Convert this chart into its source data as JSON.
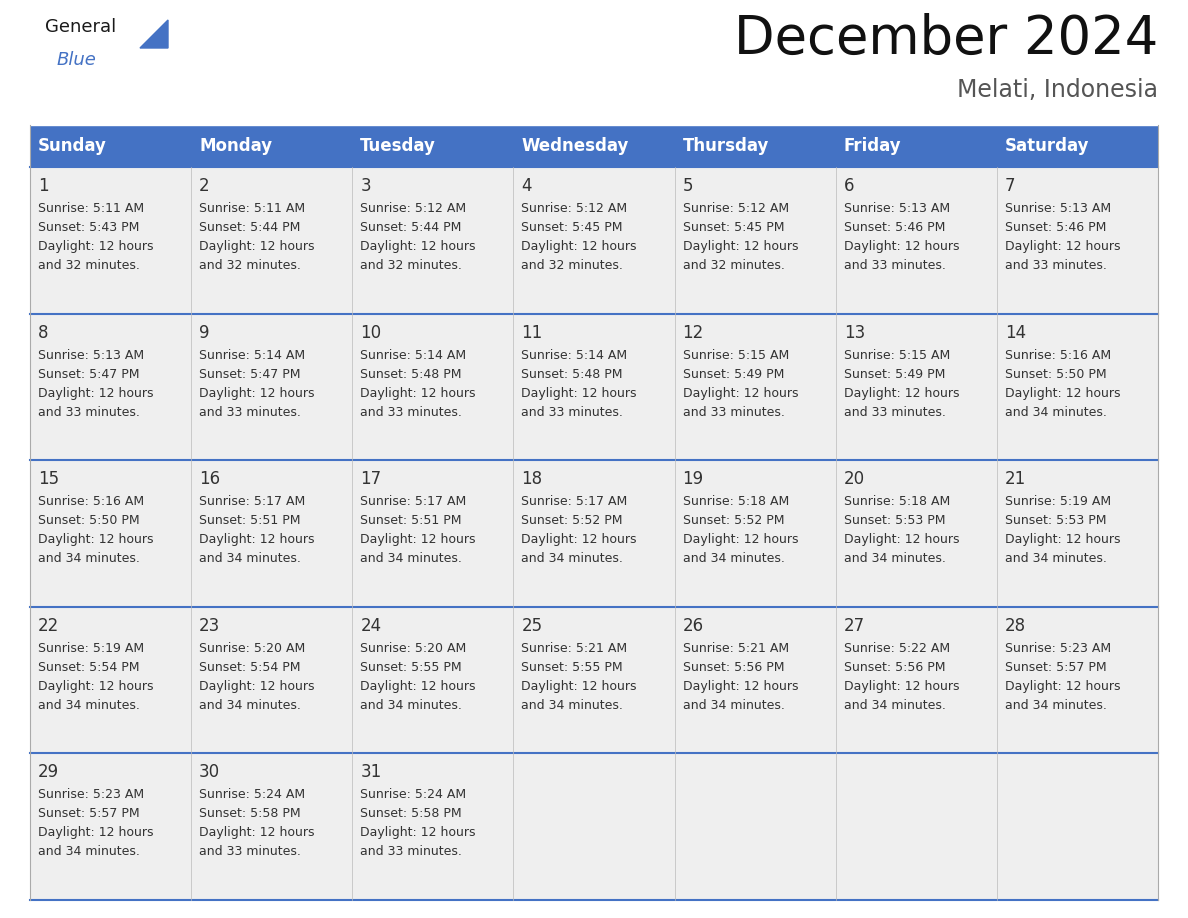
{
  "title": "December 2024",
  "subtitle": "Melati, Indonesia",
  "header_bg_color": "#4472C4",
  "header_text_color": "#FFFFFF",
  "cell_bg_color": "#EFEFEF",
  "cell_text_color": "#333333",
  "day_headers": [
    "Sunday",
    "Monday",
    "Tuesday",
    "Wednesday",
    "Thursday",
    "Friday",
    "Saturday"
  ],
  "days": [
    {
      "day": 1,
      "col": 0,
      "row": 0,
      "sunrise": "5:11 AM",
      "sunset": "5:43 PM",
      "daylight_hours": 12,
      "daylight_minutes": 32
    },
    {
      "day": 2,
      "col": 1,
      "row": 0,
      "sunrise": "5:11 AM",
      "sunset": "5:44 PM",
      "daylight_hours": 12,
      "daylight_minutes": 32
    },
    {
      "day": 3,
      "col": 2,
      "row": 0,
      "sunrise": "5:12 AM",
      "sunset": "5:44 PM",
      "daylight_hours": 12,
      "daylight_minutes": 32
    },
    {
      "day": 4,
      "col": 3,
      "row": 0,
      "sunrise": "5:12 AM",
      "sunset": "5:45 PM",
      "daylight_hours": 12,
      "daylight_minutes": 32
    },
    {
      "day": 5,
      "col": 4,
      "row": 0,
      "sunrise": "5:12 AM",
      "sunset": "5:45 PM",
      "daylight_hours": 12,
      "daylight_minutes": 32
    },
    {
      "day": 6,
      "col": 5,
      "row": 0,
      "sunrise": "5:13 AM",
      "sunset": "5:46 PM",
      "daylight_hours": 12,
      "daylight_minutes": 33
    },
    {
      "day": 7,
      "col": 6,
      "row": 0,
      "sunrise": "5:13 AM",
      "sunset": "5:46 PM",
      "daylight_hours": 12,
      "daylight_minutes": 33
    },
    {
      "day": 8,
      "col": 0,
      "row": 1,
      "sunrise": "5:13 AM",
      "sunset": "5:47 PM",
      "daylight_hours": 12,
      "daylight_minutes": 33
    },
    {
      "day": 9,
      "col": 1,
      "row": 1,
      "sunrise": "5:14 AM",
      "sunset": "5:47 PM",
      "daylight_hours": 12,
      "daylight_minutes": 33
    },
    {
      "day": 10,
      "col": 2,
      "row": 1,
      "sunrise": "5:14 AM",
      "sunset": "5:48 PM",
      "daylight_hours": 12,
      "daylight_minutes": 33
    },
    {
      "day": 11,
      "col": 3,
      "row": 1,
      "sunrise": "5:14 AM",
      "sunset": "5:48 PM",
      "daylight_hours": 12,
      "daylight_minutes": 33
    },
    {
      "day": 12,
      "col": 4,
      "row": 1,
      "sunrise": "5:15 AM",
      "sunset": "5:49 PM",
      "daylight_hours": 12,
      "daylight_minutes": 33
    },
    {
      "day": 13,
      "col": 5,
      "row": 1,
      "sunrise": "5:15 AM",
      "sunset": "5:49 PM",
      "daylight_hours": 12,
      "daylight_minutes": 33
    },
    {
      "day": 14,
      "col": 6,
      "row": 1,
      "sunrise": "5:16 AM",
      "sunset": "5:50 PM",
      "daylight_hours": 12,
      "daylight_minutes": 34
    },
    {
      "day": 15,
      "col": 0,
      "row": 2,
      "sunrise": "5:16 AM",
      "sunset": "5:50 PM",
      "daylight_hours": 12,
      "daylight_minutes": 34
    },
    {
      "day": 16,
      "col": 1,
      "row": 2,
      "sunrise": "5:17 AM",
      "sunset": "5:51 PM",
      "daylight_hours": 12,
      "daylight_minutes": 34
    },
    {
      "day": 17,
      "col": 2,
      "row": 2,
      "sunrise": "5:17 AM",
      "sunset": "5:51 PM",
      "daylight_hours": 12,
      "daylight_minutes": 34
    },
    {
      "day": 18,
      "col": 3,
      "row": 2,
      "sunrise": "5:17 AM",
      "sunset": "5:52 PM",
      "daylight_hours": 12,
      "daylight_minutes": 34
    },
    {
      "day": 19,
      "col": 4,
      "row": 2,
      "sunrise": "5:18 AM",
      "sunset": "5:52 PM",
      "daylight_hours": 12,
      "daylight_minutes": 34
    },
    {
      "day": 20,
      "col": 5,
      "row": 2,
      "sunrise": "5:18 AM",
      "sunset": "5:53 PM",
      "daylight_hours": 12,
      "daylight_minutes": 34
    },
    {
      "day": 21,
      "col": 6,
      "row": 2,
      "sunrise": "5:19 AM",
      "sunset": "5:53 PM",
      "daylight_hours": 12,
      "daylight_minutes": 34
    },
    {
      "day": 22,
      "col": 0,
      "row": 3,
      "sunrise": "5:19 AM",
      "sunset": "5:54 PM",
      "daylight_hours": 12,
      "daylight_minutes": 34
    },
    {
      "day": 23,
      "col": 1,
      "row": 3,
      "sunrise": "5:20 AM",
      "sunset": "5:54 PM",
      "daylight_hours": 12,
      "daylight_minutes": 34
    },
    {
      "day": 24,
      "col": 2,
      "row": 3,
      "sunrise": "5:20 AM",
      "sunset": "5:55 PM",
      "daylight_hours": 12,
      "daylight_minutes": 34
    },
    {
      "day": 25,
      "col": 3,
      "row": 3,
      "sunrise": "5:21 AM",
      "sunset": "5:55 PM",
      "daylight_hours": 12,
      "daylight_minutes": 34
    },
    {
      "day": 26,
      "col": 4,
      "row": 3,
      "sunrise": "5:21 AM",
      "sunset": "5:56 PM",
      "daylight_hours": 12,
      "daylight_minutes": 34
    },
    {
      "day": 27,
      "col": 5,
      "row": 3,
      "sunrise": "5:22 AM",
      "sunset": "5:56 PM",
      "daylight_hours": 12,
      "daylight_minutes": 34
    },
    {
      "day": 28,
      "col": 6,
      "row": 3,
      "sunrise": "5:23 AM",
      "sunset": "5:57 PM",
      "daylight_hours": 12,
      "daylight_minutes": 34
    },
    {
      "day": 29,
      "col": 0,
      "row": 4,
      "sunrise": "5:23 AM",
      "sunset": "5:57 PM",
      "daylight_hours": 12,
      "daylight_minutes": 34
    },
    {
      "day": 30,
      "col": 1,
      "row": 4,
      "sunrise": "5:24 AM",
      "sunset": "5:58 PM",
      "daylight_hours": 12,
      "daylight_minutes": 33
    },
    {
      "day": 31,
      "col": 2,
      "row": 4,
      "sunrise": "5:24 AM",
      "sunset": "5:58 PM",
      "daylight_hours": 12,
      "daylight_minutes": 33
    }
  ],
  "logo_triangle_color": "#4472C4",
  "title_fontsize": 38,
  "subtitle_fontsize": 17,
  "header_fontsize": 12,
  "day_number_fontsize": 12,
  "cell_content_fontsize": 9
}
